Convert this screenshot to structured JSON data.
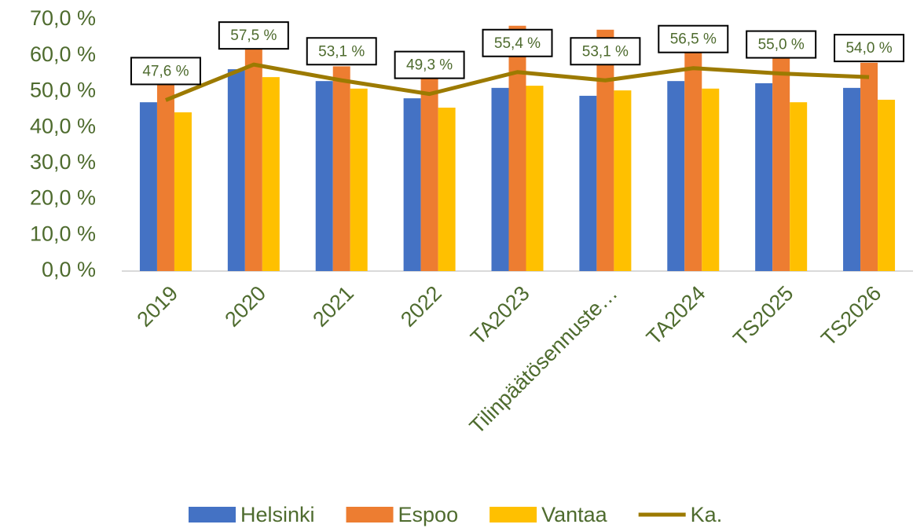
{
  "chart_data": {
    "type": "bar",
    "categories": [
      "2019",
      "2020",
      "2021",
      "2022",
      "TA2023",
      "Tilinpäätösennuste…",
      "TA2024",
      "TS2025",
      "TS2026"
    ],
    "series": [
      {
        "name": "Helsinki",
        "color": "#4472c4",
        "values": [
          47.0,
          56.2,
          52.9,
          48.1,
          51.0,
          48.8,
          52.9,
          52.3,
          51.0
        ]
      },
      {
        "name": "Espoo",
        "color": "#ed7d31",
        "values": [
          52.0,
          62.0,
          57.0,
          53.5,
          68.3,
          67.2,
          62.0,
          60.0,
          58.0
        ]
      },
      {
        "name": "Vantaa",
        "color": "#ffc000",
        "values": [
          44.2,
          54.0,
          50.8,
          45.5,
          51.6,
          50.3,
          50.8,
          47.0,
          47.7
        ]
      },
      {
        "name": "Ka.",
        "type": "line",
        "color": "#9c7a00",
        "values": [
          47.6,
          57.5,
          53.1,
          49.3,
          55.4,
          53.1,
          56.5,
          55.0,
          54.0
        ],
        "value_labels": [
          "47,6 %",
          "57,5 %",
          "53,1 %",
          "49,3 %",
          "55,4 %",
          "53,1 %",
          "56,5 %",
          "55,0 %",
          "54,0 %"
        ]
      }
    ],
    "ylim": [
      0,
      70
    ],
    "yticks": [
      {
        "value": 0,
        "label": "0,0 %"
      },
      {
        "value": 10,
        "label": "10,0 %"
      },
      {
        "value": 20,
        "label": "20,0 %"
      },
      {
        "value": 30,
        "label": "30,0 %"
      },
      {
        "value": 40,
        "label": "40,0 %"
      },
      {
        "value": 50,
        "label": "50,0 %"
      },
      {
        "value": 60,
        "label": "60,0 %"
      },
      {
        "value": 70,
        "label": "70,0 %"
      }
    ],
    "grid": false,
    "legend": "bottom"
  }
}
